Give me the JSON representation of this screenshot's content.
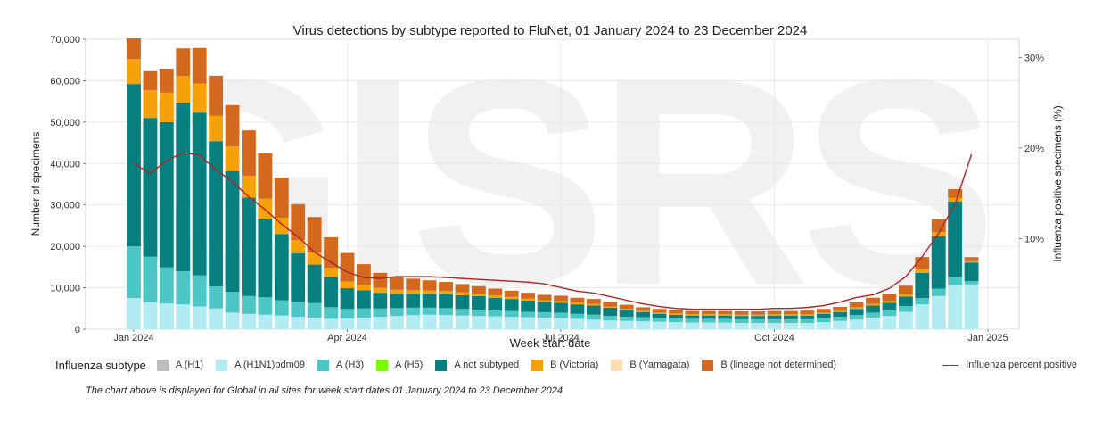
{
  "chart_data": {
    "type": "bar",
    "stacked": true,
    "title": "Virus detections by subtype reported to FluNet, 01 January 2024 to 23 December 2024",
    "xlabel": "Week start date",
    "ylabel": "Number of specimens",
    "y2label": "Influenza positive specimens (%)",
    "ylim": [
      0,
      70000
    ],
    "y2lim": [
      0,
      32
    ],
    "yticks": [
      0,
      10000,
      20000,
      30000,
      40000,
      50000,
      60000,
      70000
    ],
    "ytick_labels": [
      "0",
      "10,000",
      "20,000",
      "30,000",
      "40,000",
      "50,000",
      "60,000",
      "70,000"
    ],
    "y2ticks": [
      10,
      20,
      30
    ],
    "y2tick_labels": [
      "10%",
      "20%",
      "30%"
    ],
    "xticks": [
      {
        "week": 0,
        "label": "Jan 2024"
      },
      {
        "week": 13,
        "label": "Apr 2024"
      },
      {
        "week": 26,
        "label": "Jul 2024"
      },
      {
        "week": 39,
        "label": "Oct 2024"
      },
      {
        "week": 52,
        "label": "Jan 2025"
      }
    ],
    "grid": true,
    "legend_position": "bottom",
    "series": [
      {
        "name": "A (H1)",
        "color": "#bdbdbd",
        "values": [
          0,
          0,
          0,
          0,
          0,
          0,
          0,
          0,
          0,
          0,
          0,
          0,
          0,
          0,
          0,
          0,
          0,
          0,
          0,
          0,
          0,
          0,
          0,
          0,
          0,
          0,
          0,
          0,
          0,
          0,
          0,
          0,
          0,
          0,
          0,
          0,
          0,
          0,
          0,
          0,
          0,
          0,
          0,
          0,
          0,
          0,
          0,
          0,
          0,
          0,
          0,
          0
        ]
      },
      {
        "name": "A (H1N1)pdm09",
        "color": "#b2ebf2",
        "values": [
          7500,
          6500,
          6200,
          6000,
          5500,
          5000,
          4000,
          3700,
          3500,
          3300,
          3000,
          2800,
          2500,
          2600,
          2800,
          3000,
          3200,
          3400,
          3500,
          3400,
          3300,
          3200,
          3100,
          3000,
          2900,
          2800,
          2700,
          2500,
          2300,
          2100,
          2000,
          1900,
          1800,
          1700,
          1600,
          1600,
          1600,
          1500,
          1500,
          1500,
          1500,
          1500,
          1700,
          2000,
          2300,
          2800,
          3200,
          4200,
          6000,
          8000,
          10700,
          10800
        ]
      },
      {
        "name": "A (H3)",
        "color": "#4dc6c6",
        "values": [
          12500,
          11000,
          8700,
          8000,
          7500,
          5300,
          5000,
          4300,
          4200,
          3700,
          3600,
          3500,
          2800,
          2300,
          2200,
          2000,
          1900,
          1800,
          1700,
          1700,
          1600,
          1500,
          1400,
          1400,
          1300,
          1300,
          1300,
          1200,
          1200,
          1100,
          1000,
          1000,
          900,
          900,
          900,
          900,
          900,
          900,
          900,
          900,
          900,
          900,
          1000,
          1000,
          1100,
          1200,
          1300,
          1400,
          1500,
          1800,
          2000,
          800
        ]
      },
      {
        "name": "A (H5)",
        "color": "#7cfc00",
        "values": [
          0,
          0,
          0,
          0,
          0,
          0,
          0,
          0,
          0,
          0,
          0,
          0,
          0,
          0,
          0,
          0,
          0,
          0,
          0,
          0,
          0,
          0,
          0,
          0,
          0,
          0,
          0,
          0,
          0,
          0,
          0,
          0,
          0,
          0,
          0,
          0,
          0,
          0,
          0,
          0,
          0,
          0,
          0,
          0,
          0,
          0,
          0,
          0,
          0,
          0,
          0,
          0
        ]
      },
      {
        "name": "A not subtyped",
        "color": "#088080",
        "values": [
          39200,
          33500,
          35100,
          40700,
          39300,
          35100,
          29200,
          23800,
          19000,
          16000,
          11700,
          9300,
          7300,
          5000,
          4400,
          3800,
          3400,
          3300,
          3200,
          3300,
          3300,
          3300,
          3100,
          2900,
          2700,
          2500,
          2400,
          2300,
          2200,
          2000,
          1600,
          1200,
          1000,
          900,
          800,
          800,
          800,
          800,
          800,
          900,
          900,
          900,
          1000,
          1100,
          1500,
          1700,
          1900,
          2300,
          6100,
          12600,
          18100,
          4500
        ]
      },
      {
        "name": "B (Victoria)",
        "color": "#f5a20a",
        "values": [
          6000,
          6700,
          7100,
          6400,
          7000,
          6100,
          5900,
          5200,
          4800,
          3900,
          3200,
          2900,
          2200,
          1600,
          1300,
          1200,
          1000,
          900,
          900,
          800,
          700,
          600,
          600,
          500,
          500,
          400,
          400,
          400,
          400,
          300,
          300,
          300,
          300,
          300,
          300,
          300,
          300,
          300,
          300,
          300,
          300,
          300,
          300,
          300,
          400,
          400,
          400,
          500,
          900,
          1000,
          900,
          300
        ]
      },
      {
        "name": "B (Yamagata)",
        "color": "#fddcb0",
        "values": [
          0,
          0,
          0,
          0,
          0,
          0,
          0,
          0,
          0,
          0,
          0,
          0,
          0,
          0,
          0,
          0,
          0,
          0,
          0,
          0,
          0,
          0,
          0,
          0,
          0,
          0,
          0,
          0,
          0,
          0,
          0,
          0,
          0,
          0,
          0,
          0,
          0,
          0,
          0,
          0,
          0,
          0,
          0,
          0,
          0,
          0,
          0,
          0,
          0,
          0,
          0,
          0
        ]
      },
      {
        "name": "B (lineage not determined)",
        "color": "#d2691e",
        "values": [
          5000,
          4600,
          5800,
          6700,
          8600,
          9700,
          10000,
          11000,
          11000,
          9700,
          8700,
          8600,
          7400,
          6900,
          5000,
          3600,
          3000,
          2800,
          2500,
          2200,
          2000,
          1800,
          1600,
          1500,
          1400,
          1300,
          1300,
          1200,
          1200,
          1100,
          1000,
          900,
          900,
          900,
          800,
          800,
          800,
          800,
          800,
          800,
          800,
          900,
          900,
          1000,
          1200,
          1500,
          1800,
          2100,
          2900,
          3200,
          2100,
          1000
        ]
      }
    ],
    "line": {
      "name": "Influenza percent positive",
      "color": "#b22222",
      "axis": "y2",
      "values": [
        18.3,
        17.2,
        18.6,
        19.5,
        19.2,
        17.6,
        16.3,
        14.6,
        13.2,
        11.6,
        10.2,
        8.5,
        7.4,
        6.3,
        5.7,
        5.6,
        5.8,
        5.8,
        5.8,
        5.7,
        5.6,
        5.5,
        5.4,
        5.3,
        5.2,
        5.0,
        4.6,
        4.2,
        4.0,
        3.6,
        3.2,
        2.8,
        2.5,
        2.3,
        2.2,
        2.2,
        2.2,
        2.2,
        2.2,
        2.3,
        2.3,
        2.4,
        2.6,
        3.0,
        3.5,
        3.8,
        4.5,
        5.8,
        8.0,
        10.6,
        13.8,
        19.3
      ]
    }
  },
  "legend": {
    "title": "Influenza subtype",
    "items": [
      {
        "label": "A (H1)",
        "color": "#bdbdbd"
      },
      {
        "label": "A (H1N1)pdm09",
        "color": "#b2ebf2"
      },
      {
        "label": "A (H3)",
        "color": "#4dc6c6"
      },
      {
        "label": "A (H5)",
        "color": "#7cfc00"
      },
      {
        "label": "A not subtyped",
        "color": "#088080"
      },
      {
        "label": "B (Victoria)",
        "color": "#f5a20a"
      },
      {
        "label": "B (Yamagata)",
        "color": "#fddcb0"
      },
      {
        "label": "B (lineage not determined)",
        "color": "#d2691e"
      }
    ],
    "line_label": "Influenza percent positive",
    "line_color": "#b22222"
  },
  "footnote": "The chart above is displayed for Global in all sites for week start dates 01 January 2024 to 23 December 2024",
  "watermark_text": "GISRS"
}
